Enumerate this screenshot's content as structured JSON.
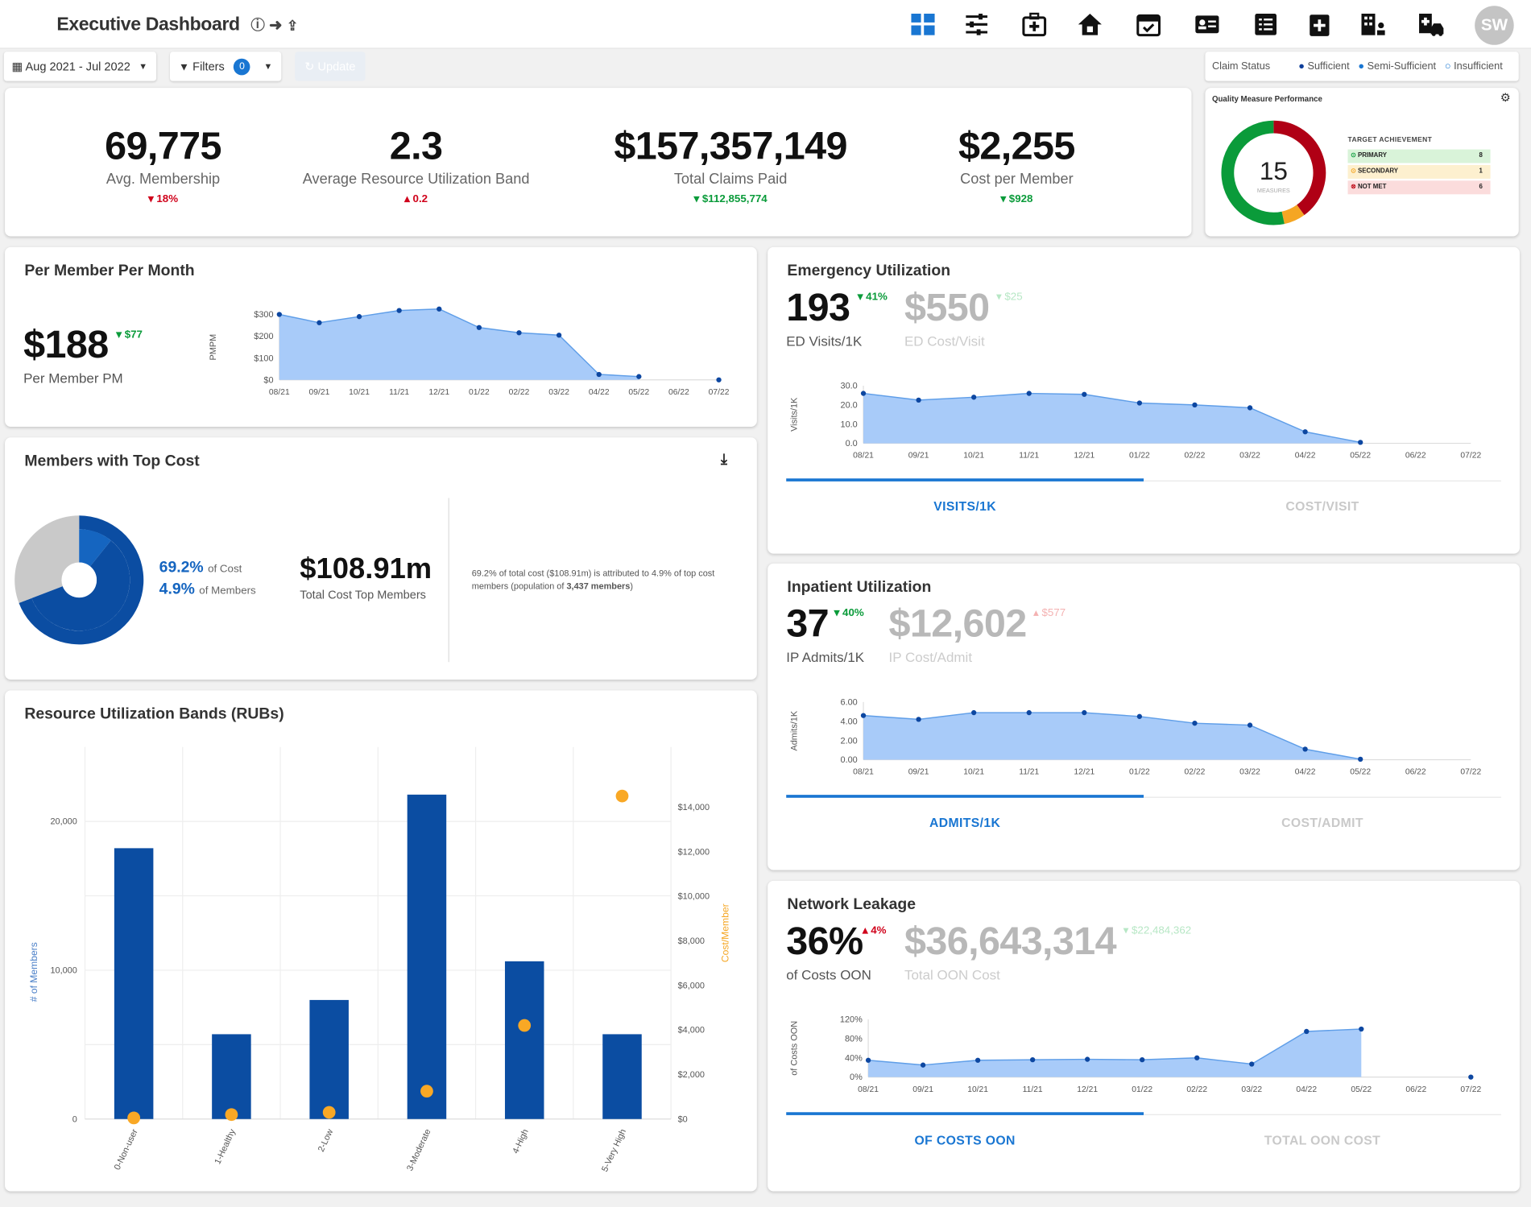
{
  "header": {
    "title": "Executive Dashboard",
    "avatar": "SW",
    "nav_icons": [
      "dashboard-icon",
      "sliders-icon",
      "medical-bag-icon",
      "home-icon",
      "calendar-icon",
      "id-card-icon",
      "list-icon",
      "medical-plus-icon",
      "building-person-icon",
      "hospital-car-icon"
    ]
  },
  "controls": {
    "date_range": "Aug 2021 - Jul 2022",
    "filters_label": "Filters",
    "filters_count": "0",
    "update_label": "Update"
  },
  "claim_status": {
    "label": "Claim Status",
    "legend": [
      "Sufficient",
      "Semi-Sufficient",
      "Insufficient"
    ]
  },
  "kpis": [
    {
      "value": "69,775",
      "label": "Avg. Membership",
      "delta": "18%",
      "dir": "down",
      "color": "red"
    },
    {
      "value": "2.3",
      "label": "Average Resource Utilization Band",
      "delta": "0.2",
      "dir": "up",
      "color": "red"
    },
    {
      "value": "$157,357,149",
      "label": "Total Claims Paid",
      "delta": "$112,855,774",
      "dir": "down",
      "color": "green"
    },
    {
      "value": "$2,255",
      "label": "Cost per Member",
      "delta": "$928",
      "dir": "down",
      "color": "green"
    }
  ],
  "quality": {
    "title": "Quality Measure Performance",
    "measures": "15",
    "measures_label": "MEASURES",
    "target_title": "TARGET ACHIEVEMENT",
    "rows": [
      {
        "label": "PRIMARY",
        "count": "8",
        "color": "#0a9b3a"
      },
      {
        "label": "SECONDARY",
        "count": "1",
        "color": "#f5a623"
      },
      {
        "label": "NOT MET",
        "count": "6",
        "color": "#c0101d"
      }
    ]
  },
  "pmpm": {
    "title": "Per Member Per Month",
    "value": "$188",
    "delta": "$77",
    "label": "Per Member PM",
    "ylabel": "PMPM"
  },
  "top_cost": {
    "title": "Members with Top Cost",
    "pct_cost": "69.2%",
    "pct_cost_lbl": "of Cost",
    "pct_members": "4.9%",
    "pct_members_lbl": "of Members",
    "total": "$108.91m",
    "total_lbl": "Total Cost Top Members",
    "desc_1": "69.2% of total cost ($108.91m) is attributed to 4.9% of top",
    "desc_2": "cost members (population of",
    "desc_bold": "3,437 members",
    "desc_3": ")"
  },
  "rubs": {
    "title": "Resource Utilization Bands (RUBs)",
    "ylabel_left": "# of Members",
    "ylabel_right": "Cost/Member"
  },
  "emergency": {
    "title": "Emergency Utilization",
    "value": "193",
    "delta": "41%",
    "label": "ED Visits/1K",
    "value2": "$550",
    "delta2": "$25",
    "label2": "ED Cost/Visit",
    "ylabel": "Visits/1K",
    "tab1": "VISITS/1K",
    "tab2": "COST/VISIT"
  },
  "inpatient": {
    "title": "Inpatient Utilization",
    "value": "37",
    "delta": "40%",
    "label": "IP Admits/1K",
    "value2": "$12,602",
    "delta2": "$577",
    "label2": "IP Cost/Admit",
    "ylabel": "Admits/1K",
    "tab1": "ADMITS/1K",
    "tab2": "COST/ADMIT"
  },
  "leakage": {
    "title": "Network Leakage",
    "value": "36%",
    "delta": "4%",
    "label": "of Costs OON",
    "value2": "$36,643,314",
    "delta2": "$22,484,362",
    "label2": "Total OON Cost",
    "ylabel": "of Costs OON",
    "tab1": "OF COSTS OON",
    "tab2": "TOTAL OON COST"
  },
  "chart_data": [
    {
      "type": "area",
      "id": "pmpm",
      "x": [
        "08/21",
        "09/21",
        "10/21",
        "11/21",
        "12/21",
        "01/22",
        "02/22",
        "03/22",
        "04/22",
        "05/22",
        "06/22",
        "07/22"
      ],
      "values": [
        300,
        262,
        290,
        318,
        325,
        240,
        216,
        205,
        25,
        15,
        null,
        0
      ],
      "ylim": [
        0,
        300
      ],
      "yticks": [
        "$0",
        "$100",
        "$200",
        "$300"
      ],
      "ylabel": "PMPM"
    },
    {
      "type": "area",
      "id": "ed",
      "x": [
        "08/21",
        "09/21",
        "10/21",
        "11/21",
        "12/21",
        "01/22",
        "02/22",
        "03/22",
        "04/22",
        "05/22",
        "06/22",
        "07/22"
      ],
      "values": [
        26,
        22.5,
        24,
        26,
        25.5,
        21,
        20,
        18.5,
        6,
        0.5,
        null,
        null
      ],
      "ylim": [
        0,
        30
      ],
      "yticks": [
        "0.0",
        "10.0",
        "20.0",
        "30.0"
      ],
      "ylabel": "Visits/1K"
    },
    {
      "type": "area",
      "id": "ip",
      "x": [
        "08/21",
        "09/21",
        "10/21",
        "11/21",
        "12/21",
        "01/22",
        "02/22",
        "03/22",
        "04/22",
        "05/22",
        "06/22",
        "07/22"
      ],
      "values": [
        4.6,
        4.2,
        4.9,
        4.9,
        4.9,
        4.5,
        3.8,
        3.6,
        1.1,
        0.05,
        null,
        null
      ],
      "ylim": [
        0,
        6
      ],
      "yticks": [
        "0.00",
        "2.00",
        "4.00",
        "6.00"
      ],
      "ylabel": "Admits/1K"
    },
    {
      "type": "area",
      "id": "oon",
      "x": [
        "08/21",
        "09/21",
        "10/21",
        "11/21",
        "12/21",
        "01/22",
        "02/22",
        "03/22",
        "04/22",
        "05/22",
        "06/22",
        "07/22"
      ],
      "values": [
        35,
        25,
        35,
        36,
        37,
        36,
        40,
        27,
        95,
        100,
        null,
        0
      ],
      "ylim": [
        0,
        120
      ],
      "yticks": [
        "0%",
        "40%",
        "80%",
        "120%"
      ],
      "ylabel": "of Costs OON"
    },
    {
      "type": "bar",
      "id": "rubs",
      "categories": [
        "0-Non-user",
        "1-Healthy",
        "2-Low",
        "3-Moderate",
        "4-High",
        "5-Very High"
      ],
      "series": [
        {
          "name": "# of Members",
          "values": [
            18200,
            5700,
            8000,
            21800,
            10600,
            5700
          ]
        },
        {
          "name": "Cost/Member",
          "type": "scatter",
          "values": [
            50,
            200,
            300,
            1250,
            4200,
            14500
          ]
        }
      ],
      "left_ylim": [
        0,
        25000
      ],
      "left_ticks": [
        "0",
        "10,000",
        "20,000"
      ],
      "right_ylim": [
        0,
        16700
      ],
      "right_ticks": [
        "$0",
        "$2,000",
        "$4,000",
        "$6,000",
        "$8,000",
        "$10,000",
        "$12,000",
        "$14,000"
      ]
    },
    {
      "type": "pie",
      "id": "top_cost_donut",
      "slices": [
        {
          "label": "Top Members",
          "value": 4.9
        },
        {
          "label": "Other Members",
          "value": 95.1
        }
      ],
      "outer_ring": [
        {
          "label": "Top Cost",
          "value": 69.2
        },
        {
          "label": "Other Cost",
          "value": 30.8
        }
      ]
    },
    {
      "type": "pie",
      "id": "quality_donut",
      "slices": [
        {
          "label": "Primary",
          "value": 8
        },
        {
          "label": "Secondary",
          "value": 1
        },
        {
          "label": "Not Met",
          "value": 6
        }
      ]
    }
  ]
}
